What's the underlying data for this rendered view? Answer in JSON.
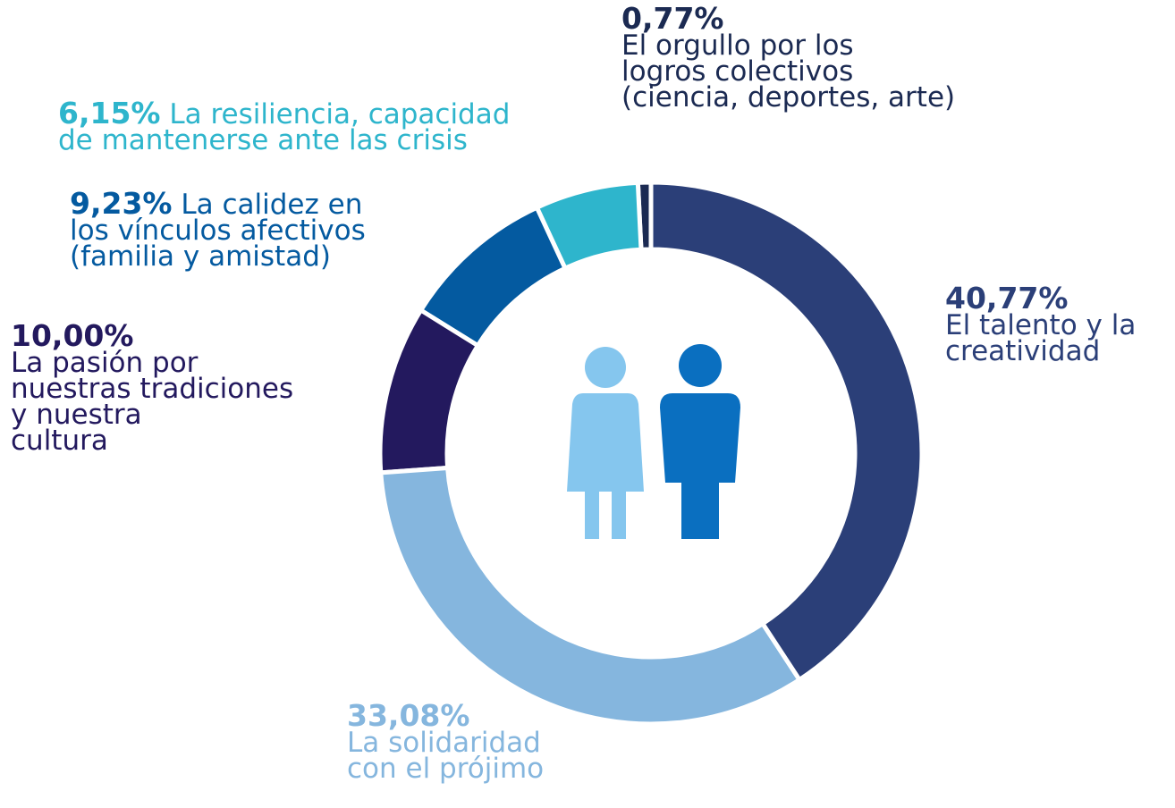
{
  "chart_data": {
    "type": "pie",
    "categories": [
      "El talento y la\ncreatividad",
      "La solidaridad\ncon el prójimo",
      "La pasión por\nnuestras tradiciones\ny nuestra\ncultura",
      "La calidez en\nlos vínculos afectivos\n(familia y amistad)",
      "La resiliencia, capacidad\nde mantenerse ante las crisis",
      "El orgullo por los\nlogros colectivos\n(ciencia, deportes, arte)"
    ],
    "values": [
      40.77,
      33.08,
      10.0,
      9.23,
      6.15,
      0.77
    ],
    "value_labels": [
      "40,77%",
      "33,08%",
      "10,00%",
      "9,23%",
      "6,15%",
      "0,77%"
    ],
    "colors": [
      "#2b3f78",
      "#85b6de",
      "#23195e",
      "#045aa0",
      "#2eb5cc",
      "#1b2a52"
    ]
  }
}
